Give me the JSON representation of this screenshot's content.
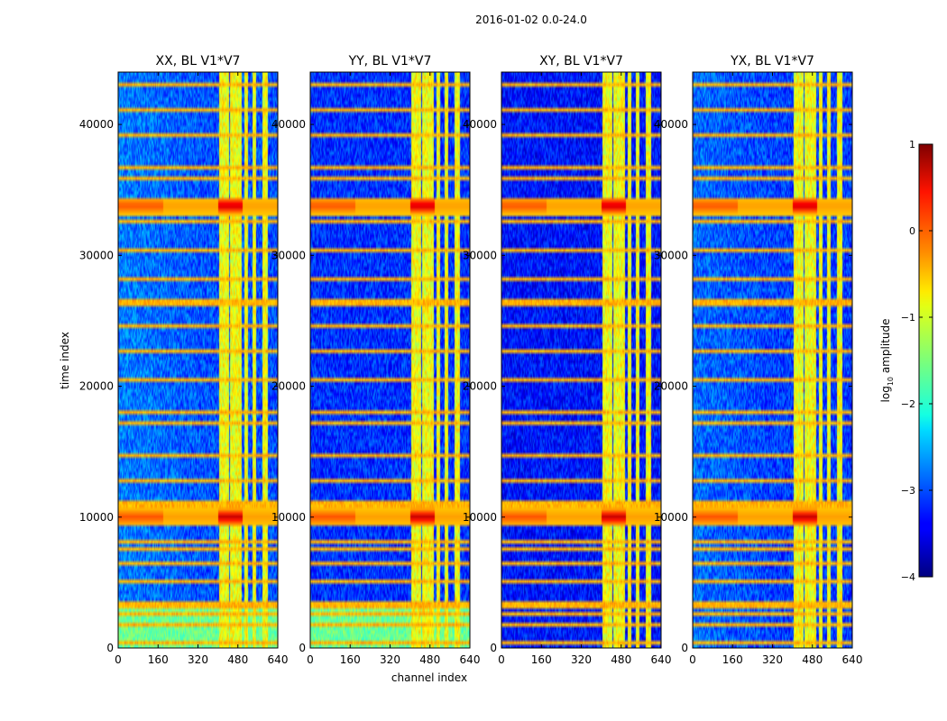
{
  "chart_data": {
    "type": "heatmap",
    "suptitle": "2016-01-02 0.0-24.0",
    "xlabel": "channel index",
    "ylabel": "time index",
    "xlim": [
      0,
      640
    ],
    "ylim": [
      0,
      44000
    ],
    "xticks": [
      0,
      160,
      320,
      480,
      640
    ],
    "yticks": [
      0,
      10000,
      20000,
      30000,
      40000
    ],
    "panels": [
      {
        "title": "XX, BL V1*V7",
        "pol": "XX"
      },
      {
        "title": "YY, BL V1*V7",
        "pol": "YY"
      },
      {
        "title": "XY, BL V1*V7",
        "pol": "XY"
      },
      {
        "title": "YX, BL V1*V7",
        "pol": "YX"
      }
    ],
    "features": {
      "bright_channel_bands": [
        [
          405,
          445
        ],
        [
          450,
          495
        ],
        [
          505,
          520
        ],
        [
          540,
          555
        ],
        [
          580,
          600
        ]
      ],
      "strong_time_events": [
        10000,
        33800
      ],
      "rfi_time_lines": [
        500,
        1800,
        2600,
        3300,
        5200,
        6500,
        7500,
        8200,
        11000,
        12800,
        14800,
        17100,
        18100,
        20600,
        22700,
        24500,
        26400,
        28200,
        30300,
        32600,
        35900,
        36600,
        39200,
        41000,
        43000
      ]
    },
    "colorbar": {
      "label": "log",
      "label_sub": "10",
      "label_rest": " amplitude",
      "min": -4,
      "max": 1,
      "ticks": [
        1,
        0,
        -1,
        -2,
        -3,
        -4
      ],
      "tick_labels": [
        "1",
        "0",
        "−1",
        "−2",
        "−3",
        "−4"
      ],
      "colormap": "jet"
    }
  }
}
